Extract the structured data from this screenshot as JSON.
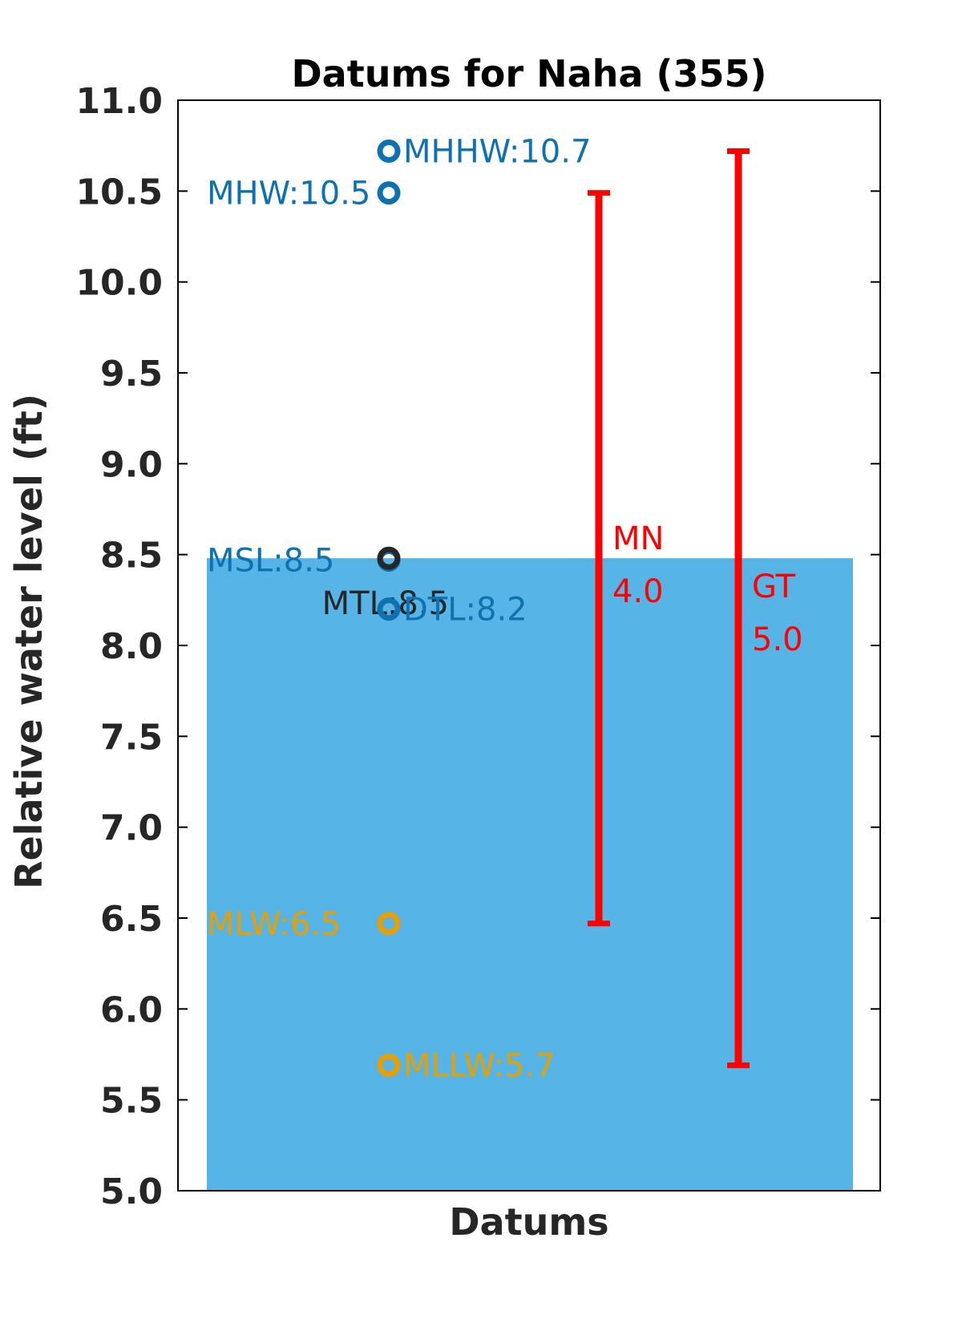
{
  "chart_data": {
    "type": "scatter",
    "title": "Datums for Naha (355)",
    "xlabel": "Datums",
    "ylabel": "Relative water level (ft)",
    "ylim": [
      5.0,
      11.0
    ],
    "yticks": [
      "5.0",
      "5.5",
      "6.0",
      "6.5",
      "7.0",
      "7.5",
      "8.0",
      "8.5",
      "9.0",
      "9.5",
      "10.0",
      "10.5",
      "11.0"
    ],
    "grid": false,
    "background_bar": {
      "value": 8.48,
      "color": "#56b4e6"
    },
    "datums": [
      {
        "name": "MHHW",
        "value": 10.72,
        "label": "MHHW:10.7",
        "color": "#0f72b0",
        "label_side": "right"
      },
      {
        "name": "MHW",
        "value": 10.49,
        "label": "MHW:10.5",
        "color": "#0f72b0",
        "label_side": "left"
      },
      {
        "name": "MSL",
        "value": 8.47,
        "label": "MSL:8.5",
        "color": "#0f72b0",
        "label_side": "left"
      },
      {
        "name": "MTL",
        "value": 8.48,
        "label": "MTL:8.5",
        "color": "#262626",
        "label_side": "left-low"
      },
      {
        "name": "DTL",
        "value": 8.2,
        "label": "DTL:8.2",
        "color": "#0f72b0",
        "label_side": "right"
      },
      {
        "name": "MLW",
        "value": 6.47,
        "label": "MLW:6.5",
        "color": "#e69f00",
        "label_side": "left"
      },
      {
        "name": "MLLW",
        "value": 5.69,
        "label": "MLLW:5.7",
        "color": "#e69f00",
        "label_side": "right"
      }
    ],
    "ranges": [
      {
        "name": "MN",
        "low": 6.47,
        "high": 10.49,
        "label_line1": "MN",
        "label_line2": "4.0",
        "color": "#ff0000"
      },
      {
        "name": "GT",
        "low": 5.69,
        "high": 10.72,
        "label_line1": "GT",
        "label_line2": "5.0",
        "color": "#ff0000"
      }
    ]
  }
}
